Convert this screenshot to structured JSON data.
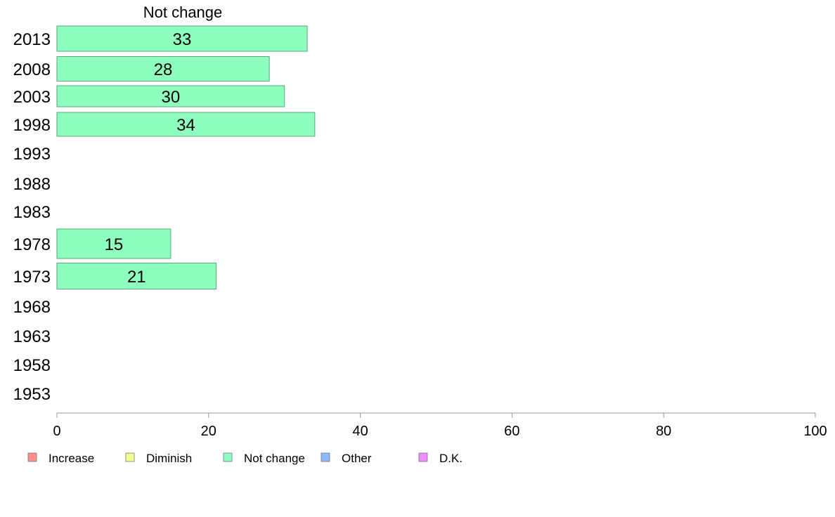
{
  "chart_data": {
    "type": "bar",
    "orientation": "horizontal",
    "panel_title": "Not change",
    "categories": [
      "2013",
      "2008",
      "2003",
      "1998",
      "1993",
      "1988",
      "1983",
      "1978",
      "1973",
      "1968",
      "1963",
      "1958",
      "1953"
    ],
    "series": [
      {
        "name": "Not change",
        "color": "#8effbe",
        "values": [
          33,
          28,
          30,
          34,
          null,
          null,
          null,
          15,
          21,
          null,
          null,
          null,
          null
        ]
      }
    ],
    "value_labels": [
      "33",
      "28",
      "30",
      "34",
      "",
      "",
      "",
      "15",
      "21",
      "",
      "",
      "",
      ""
    ],
    "xlim": [
      0,
      100
    ],
    "xticks": [
      0,
      20,
      40,
      60,
      80,
      100
    ],
    "xtick_labels": [
      "0",
      "20",
      "40",
      "60",
      "80",
      "100"
    ],
    "grid": false,
    "legend_position": "bottom",
    "legend": [
      {
        "label": "Increase",
        "color": "#ff8e8e"
      },
      {
        "label": "Diminish",
        "color": "#f0ff8e"
      },
      {
        "label": "Not change",
        "color": "#8effbe"
      },
      {
        "label": "Other",
        "color": "#8eb8ff"
      },
      {
        "label": "D.K.",
        "color": "#f08eff"
      }
    ],
    "bar_edge_color": "#5aa77a",
    "axis_color": "#999999"
  }
}
